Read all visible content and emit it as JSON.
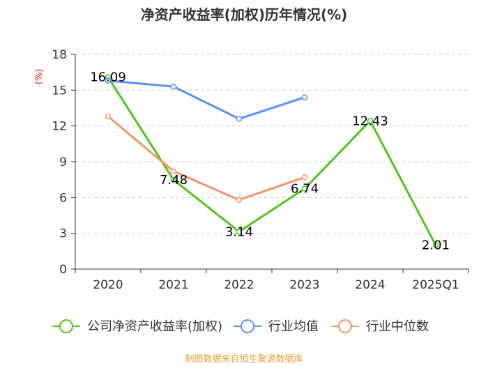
{
  "chart_data": {
    "type": "line",
    "title": "净资产收益率(加权)历年情况(%)",
    "y_unit": "(%)",
    "categories": [
      "2020",
      "2021",
      "2022",
      "2023",
      "2024",
      "2025Q1"
    ],
    "ylim": [
      0,
      18
    ],
    "yticks": [
      0,
      3,
      6,
      9,
      12,
      15,
      18
    ],
    "grid": true,
    "legend_position": "bottom",
    "series": [
      {
        "name": "公司净资产收益率(加权)",
        "color": "#52c41a",
        "values": [
          16.09,
          7.48,
          3.14,
          6.74,
          12.43,
          2.01
        ],
        "labels": [
          "16.09",
          "7.48",
          "3.14",
          "6.74",
          "12.43",
          "2.01"
        ],
        "show_labels": true
      },
      {
        "name": "行业均值",
        "color": "#5b8ff9",
        "values": [
          15.8,
          15.3,
          12.6,
          14.4,
          null,
          null
        ],
        "show_labels": false
      },
      {
        "name": "行业中位数",
        "color": "#f4956a",
        "values": [
          12.8,
          8.2,
          5.8,
          7.7,
          null,
          null
        ],
        "show_labels": false
      }
    ],
    "source": "制图数据来自恒生聚源数据库"
  },
  "colors": {
    "axis": "#333333",
    "grid": "#cccccc",
    "unit": "#e02020",
    "source": "#e5a03c"
  }
}
